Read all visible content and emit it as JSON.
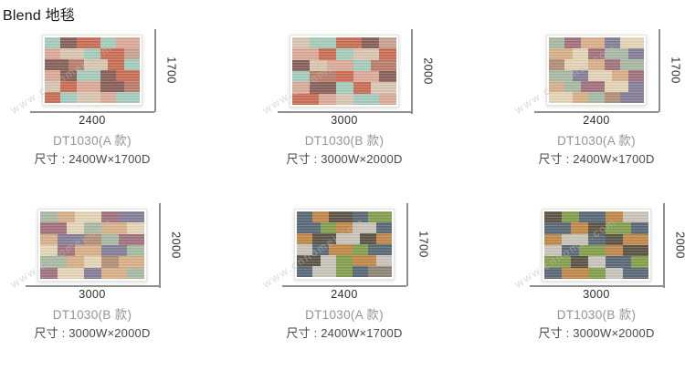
{
  "header": {
    "title": "Blend 地毯"
  },
  "watermark": "www.cnhomei.com",
  "palettes": {
    "warm": [
      "#cb6f56",
      "#a5cdbd",
      "#8a625c",
      "#dcab99",
      "#dac7b2",
      "#b97f6e",
      "#c8a392"
    ],
    "muted": [
      "#d8b18a",
      "#a3747f",
      "#e4d5b8",
      "#a9bba5",
      "#87809b",
      "#b59079",
      "#c5cdc5"
    ],
    "cool": [
      "#5c6b78",
      "#c28a4c",
      "#85a050",
      "#5f5549",
      "#c9c5ba",
      "#8e8677",
      "#9aa84f"
    ]
  },
  "products": [
    {
      "name": "DT1030(A 款)",
      "size": "尺寸 : 2400W×1700D",
      "width_label": "2400",
      "height_label": "1700",
      "variant": "A",
      "palette": "warm",
      "rows": [
        [
          [
            2,
            1
          ],
          [
            2,
            2
          ],
          [
            3,
            0
          ],
          [
            2,
            1
          ],
          [
            3,
            3
          ]
        ],
        [
          [
            2,
            3
          ],
          [
            3,
            4
          ],
          [
            2,
            1
          ],
          [
            3,
            0
          ],
          [
            2,
            6
          ]
        ],
        [
          [
            3,
            2
          ],
          [
            2,
            5
          ],
          [
            3,
            4
          ],
          [
            2,
            0
          ],
          [
            2,
            1
          ]
        ],
        [
          [
            2,
            3
          ],
          [
            2,
            2
          ],
          [
            3,
            1
          ],
          [
            2,
            2
          ],
          [
            3,
            0
          ]
        ],
        [
          [
            2,
            4
          ],
          [
            2,
            0
          ],
          [
            3,
            3
          ],
          [
            3,
            2
          ],
          [
            2,
            5
          ]
        ],
        [
          [
            2,
            0
          ],
          [
            2,
            1
          ],
          [
            3,
            4
          ],
          [
            2,
            3
          ],
          [
            3,
            1
          ]
        ]
      ]
    },
    {
      "name": "DT1030(B 款)",
      "size": "尺寸 : 3000W×2000D",
      "width_label": "3000",
      "height_label": "2000",
      "variant": "B",
      "palette": "warm",
      "rows": [
        [
          [
            2,
            4
          ],
          [
            3,
            1
          ],
          [
            3,
            0
          ],
          [
            2,
            2
          ],
          [
            2,
            6
          ]
        ],
        [
          [
            3,
            3
          ],
          [
            2,
            0
          ],
          [
            2,
            1
          ],
          [
            3,
            4
          ],
          [
            2,
            0
          ]
        ],
        [
          [
            2,
            2
          ],
          [
            2,
            4
          ],
          [
            3,
            3
          ],
          [
            2,
            1
          ],
          [
            3,
            5
          ]
        ],
        [
          [
            2,
            1
          ],
          [
            3,
            5
          ],
          [
            2,
            0
          ],
          [
            3,
            3
          ],
          [
            2,
            2
          ]
        ],
        [
          [
            2,
            3
          ],
          [
            3,
            2
          ],
          [
            2,
            1
          ],
          [
            2,
            0
          ],
          [
            3,
            4
          ]
        ],
        [
          [
            3,
            0
          ],
          [
            2,
            3
          ],
          [
            2,
            4
          ],
          [
            3,
            1
          ],
          [
            2,
            3
          ]
        ]
      ]
    },
    {
      "name": "DT1030(A 款)",
      "size": "尺寸 : 2400W×1700D",
      "width_label": "2400",
      "height_label": "1700",
      "variant": "A",
      "palette": "muted",
      "rows": [
        [
          [
            2,
            3
          ],
          [
            2,
            1
          ],
          [
            3,
            0
          ],
          [
            2,
            4
          ],
          [
            3,
            2
          ]
        ],
        [
          [
            3,
            0
          ],
          [
            2,
            2
          ],
          [
            2,
            1
          ],
          [
            3,
            3
          ],
          [
            2,
            4
          ]
        ],
        [
          [
            2,
            5
          ],
          [
            3,
            2
          ],
          [
            2,
            0
          ],
          [
            2,
            1
          ],
          [
            3,
            3
          ]
        ],
        [
          [
            3,
            3
          ],
          [
            2,
            4
          ],
          [
            3,
            2
          ],
          [
            2,
            0
          ],
          [
            2,
            1
          ]
        ],
        [
          [
            2,
            0
          ],
          [
            2,
            3
          ],
          [
            3,
            1
          ],
          [
            3,
            2
          ],
          [
            2,
            4
          ]
        ],
        [
          [
            3,
            2
          ],
          [
            2,
            0
          ],
          [
            2,
            3
          ],
          [
            2,
            5
          ],
          [
            3,
            4
          ]
        ]
      ]
    },
    {
      "name": "DT1030(B 款)",
      "size": "尺寸 : 3000W×2000D",
      "width_label": "3000",
      "height_label": "2000",
      "variant": "B",
      "palette": "muted",
      "rows": [
        [
          [
            2,
            3
          ],
          [
            2,
            0
          ],
          [
            3,
            2
          ],
          [
            2,
            1
          ],
          [
            3,
            4
          ]
        ],
        [
          [
            3,
            1
          ],
          [
            2,
            2
          ],
          [
            2,
            3
          ],
          [
            3,
            0
          ],
          [
            2,
            2
          ]
        ],
        [
          [
            2,
            0
          ],
          [
            3,
            4
          ],
          [
            2,
            5
          ],
          [
            2,
            3
          ],
          [
            3,
            1
          ]
        ],
        [
          [
            2,
            2
          ],
          [
            2,
            1
          ],
          [
            3,
            0
          ],
          [
            3,
            4
          ],
          [
            2,
            3
          ]
        ],
        [
          [
            3,
            3
          ],
          [
            2,
            0
          ],
          [
            2,
            2
          ],
          [
            2,
            5
          ],
          [
            3,
            0
          ]
        ],
        [
          [
            2,
            1
          ],
          [
            3,
            2
          ],
          [
            2,
            4
          ],
          [
            3,
            0
          ],
          [
            2,
            3
          ]
        ]
      ]
    },
    {
      "name": "DT1030(A 款)",
      "size": "尺寸 : 2400W×1700D",
      "width_label": "2400",
      "height_label": "1700",
      "variant": "A",
      "palette": "cool",
      "rows": [
        [
          [
            2,
            0
          ],
          [
            2,
            1
          ],
          [
            3,
            3
          ],
          [
            2,
            0
          ],
          [
            3,
            2
          ]
        ],
        [
          [
            3,
            0
          ],
          [
            2,
            2
          ],
          [
            2,
            1
          ],
          [
            3,
            4
          ],
          [
            2,
            0
          ]
        ],
        [
          [
            2,
            1
          ],
          [
            3,
            3
          ],
          [
            3,
            4
          ],
          [
            2,
            3
          ],
          [
            2,
            1
          ]
        ],
        [
          [
            2,
            4
          ],
          [
            2,
            0
          ],
          [
            3,
            1
          ],
          [
            2,
            2
          ],
          [
            3,
            0
          ]
        ],
        [
          [
            3,
            3
          ],
          [
            2,
            4
          ],
          [
            2,
            2
          ],
          [
            3,
            1
          ],
          [
            2,
            4
          ]
        ],
        [
          [
            2,
            0
          ],
          [
            3,
            4
          ],
          [
            2,
            2
          ],
          [
            2,
            0
          ],
          [
            3,
            5
          ]
        ]
      ]
    },
    {
      "name": "DT1030(B 款)",
      "size": "尺寸 : 3000W×2000D",
      "width_label": "3000",
      "height_label": "2000",
      "variant": "B",
      "palette": "cool",
      "rows": [
        [
          [
            2,
            3
          ],
          [
            2,
            2
          ],
          [
            3,
            0
          ],
          [
            2,
            1
          ],
          [
            3,
            4
          ]
        ],
        [
          [
            3,
            0
          ],
          [
            2,
            1
          ],
          [
            2,
            3
          ],
          [
            3,
            2
          ],
          [
            2,
            0
          ]
        ],
        [
          [
            2,
            1
          ],
          [
            3,
            4
          ],
          [
            2,
            0
          ],
          [
            2,
            3
          ],
          [
            3,
            1
          ]
        ],
        [
          [
            2,
            4
          ],
          [
            2,
            0
          ],
          [
            3,
            2
          ],
          [
            2,
            1
          ],
          [
            3,
            3
          ]
        ],
        [
          [
            3,
            2
          ],
          [
            2,
            3
          ],
          [
            2,
            4
          ],
          [
            3,
            0
          ],
          [
            2,
            2
          ]
        ],
        [
          [
            2,
            0
          ],
          [
            3,
            1
          ],
          [
            2,
            2
          ],
          [
            2,
            4
          ],
          [
            3,
            0
          ]
        ]
      ]
    }
  ]
}
